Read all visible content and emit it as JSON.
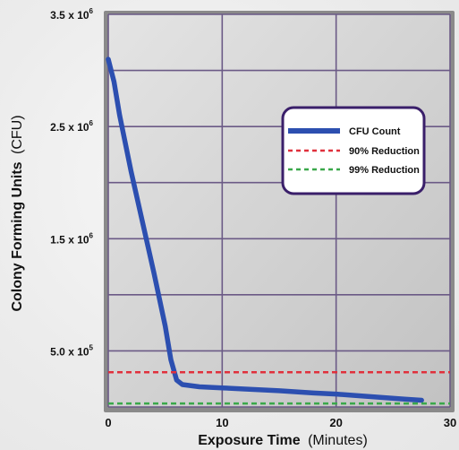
{
  "chart_data": {
    "type": "line",
    "xlabel_bold": "Exposure Time",
    "xlabel_unit": "(Minutes)",
    "ylabel_bold": "Colony Forming Units",
    "ylabel_unit": "(CFU)",
    "xlim": [
      0,
      30
    ],
    "ylim": [
      0,
      3500000
    ],
    "x_ticks": [
      {
        "value": 0,
        "label": "0"
      },
      {
        "value": 10,
        "label": "10"
      },
      {
        "value": 20,
        "label": "20"
      },
      {
        "value": 30,
        "label": "30"
      }
    ],
    "y_ticks": [
      {
        "value": 500000,
        "mantissa": "5.0 x 10",
        "exp": "5"
      },
      {
        "value": 1500000,
        "mantissa": "1.5 x 10",
        "exp": "6"
      },
      {
        "value": 2500000,
        "mantissa": "2.5 x 10",
        "exp": "6"
      },
      {
        "value": 3500000,
        "mantissa": "3.5 x 10",
        "exp": "6"
      }
    ],
    "x_gridlines": [
      0,
      10,
      20,
      30
    ],
    "y_gridlines": [
      0,
      500000,
      1000000,
      1500000,
      2000000,
      2500000,
      3000000,
      3500000
    ],
    "grid": true,
    "legend_position": "top-right",
    "series": [
      {
        "name": "CFU Count",
        "style": "solid",
        "color": "#2c4fb0",
        "x": [
          0,
          0.5,
          1,
          2,
          3,
          4,
          5,
          5.5,
          6,
          6.5,
          8,
          10,
          12,
          15,
          18,
          20,
          22,
          24,
          26,
          27.5
        ],
        "y": [
          3100000,
          2900000,
          2600000,
          2100000,
          1650000,
          1200000,
          720000,
          420000,
          240000,
          200000,
          180000,
          170000,
          160000,
          145000,
          125000,
          115000,
          100000,
          85000,
          70000,
          60000
        ]
      },
      {
        "name": "90% Reduction",
        "style": "dashed",
        "color": "#e0303c",
        "x": [
          0,
          30
        ],
        "y": [
          310000,
          310000
        ]
      },
      {
        "name": "99% Reduction",
        "style": "dashed",
        "color": "#3aa84a",
        "x": [
          0,
          30
        ],
        "y": [
          31000,
          31000
        ]
      }
    ]
  },
  "colors": {
    "plot_background": "#cfcfcf",
    "plot_border": "#8a8a8a",
    "grid": "#6b5a86",
    "legend_border": "#3a1f6a"
  }
}
